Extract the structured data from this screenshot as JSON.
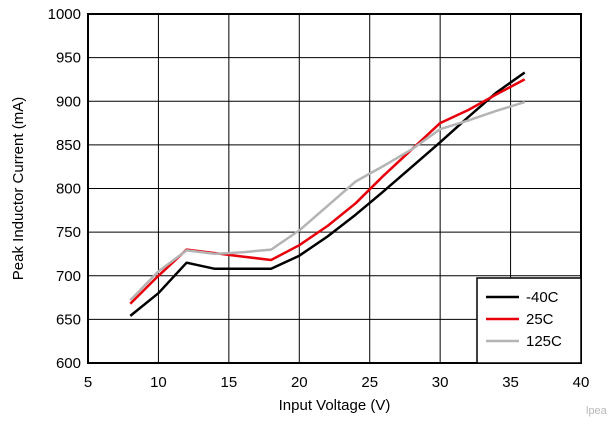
{
  "chart_data": {
    "type": "line",
    "title": "",
    "xlabel": "Input Voltage (V)",
    "ylabel": "Peak Inductor Current (mA)",
    "xlim": [
      5,
      40
    ],
    "ylim": [
      600,
      1000
    ],
    "xticks": [
      5,
      10,
      15,
      20,
      25,
      30,
      35,
      40
    ],
    "yticks": [
      600,
      650,
      700,
      750,
      800,
      850,
      900,
      950,
      1000
    ],
    "grid": true,
    "legend_position": "bottom-right",
    "series": [
      {
        "name": "-40C",
        "color": "#000000",
        "x": [
          8,
          10,
          12,
          14,
          16,
          18,
          20,
          22,
          24,
          26,
          28,
          30,
          32,
          34,
          36
        ],
        "y": [
          654,
          680,
          715,
          708,
          708,
          708,
          723,
          745,
          770,
          797,
          825,
          853,
          882,
          910,
          933
        ]
      },
      {
        "name": "25C",
        "color": "#e8000b",
        "x": [
          8,
          10,
          12,
          14,
          16,
          18,
          20,
          22,
          24,
          26,
          28,
          30,
          32,
          34,
          36
        ],
        "y": [
          668,
          700,
          730,
          726,
          722,
          718,
          735,
          757,
          783,
          815,
          845,
          875,
          890,
          908,
          925
        ]
      },
      {
        "name": "125C",
        "color": "#b4b4b4",
        "x": [
          8,
          10,
          12,
          14,
          16,
          18,
          20,
          22,
          24,
          26,
          28,
          30,
          32,
          34,
          36
        ],
        "y": [
          672,
          705,
          729,
          725,
          727,
          730,
          752,
          780,
          808,
          826,
          845,
          868,
          878,
          889,
          899
        ]
      }
    ]
  },
  "watermark": "lpea"
}
